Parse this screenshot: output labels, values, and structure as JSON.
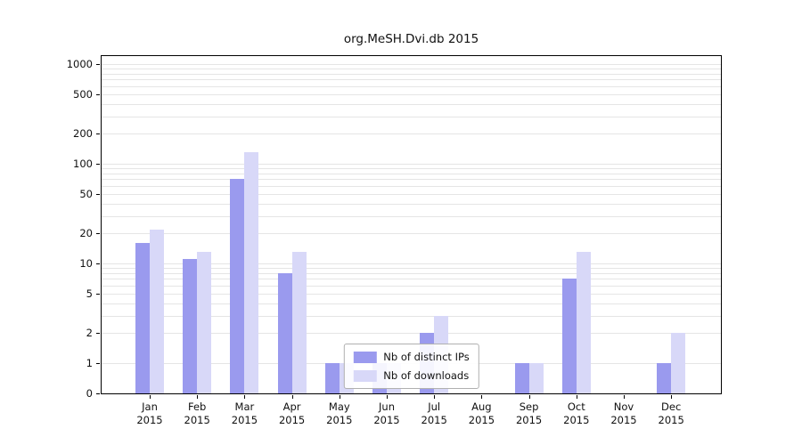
{
  "figure": {
    "title": "org.MeSH.Dvi.db 2015"
  },
  "chart_data": {
    "type": "bar",
    "title": "org.MeSH.Dvi.db 2015",
    "categories": [
      "Jan 2015",
      "Feb 2015",
      "Mar 2015",
      "Apr 2015",
      "May 2015",
      "Jun 2015",
      "Jul 2015",
      "Aug 2015",
      "Sep 2015",
      "Oct 2015",
      "Nov 2015",
      "Dec 2015"
    ],
    "series": [
      {
        "name": "Nb of distinct IPs",
        "color": "#9a9aee",
        "values": [
          16,
          11,
          70,
          8,
          1,
          1,
          2,
          0,
          1,
          7,
          0,
          1
        ]
      },
      {
        "name": "Nb of downloads",
        "color": "#d8d8f8",
        "values": [
          22,
          13,
          130,
          13,
          1,
          1,
          3,
          0,
          1,
          13,
          0,
          2
        ]
      }
    ],
    "yticks": [
      0,
      1,
      2,
      5,
      10,
      20,
      50,
      100,
      200,
      500,
      1000
    ],
    "ylim": [
      0,
      1000
    ],
    "yscale": "symlog",
    "grid": "horizontal",
    "legend_position": "lower center",
    "colors": {
      "grid": "#e5e5e5",
      "axis": "#000000",
      "background": "#ffffff",
      "distinct_ips": "#9a9aee",
      "downloads": "#d8d8f8"
    }
  }
}
